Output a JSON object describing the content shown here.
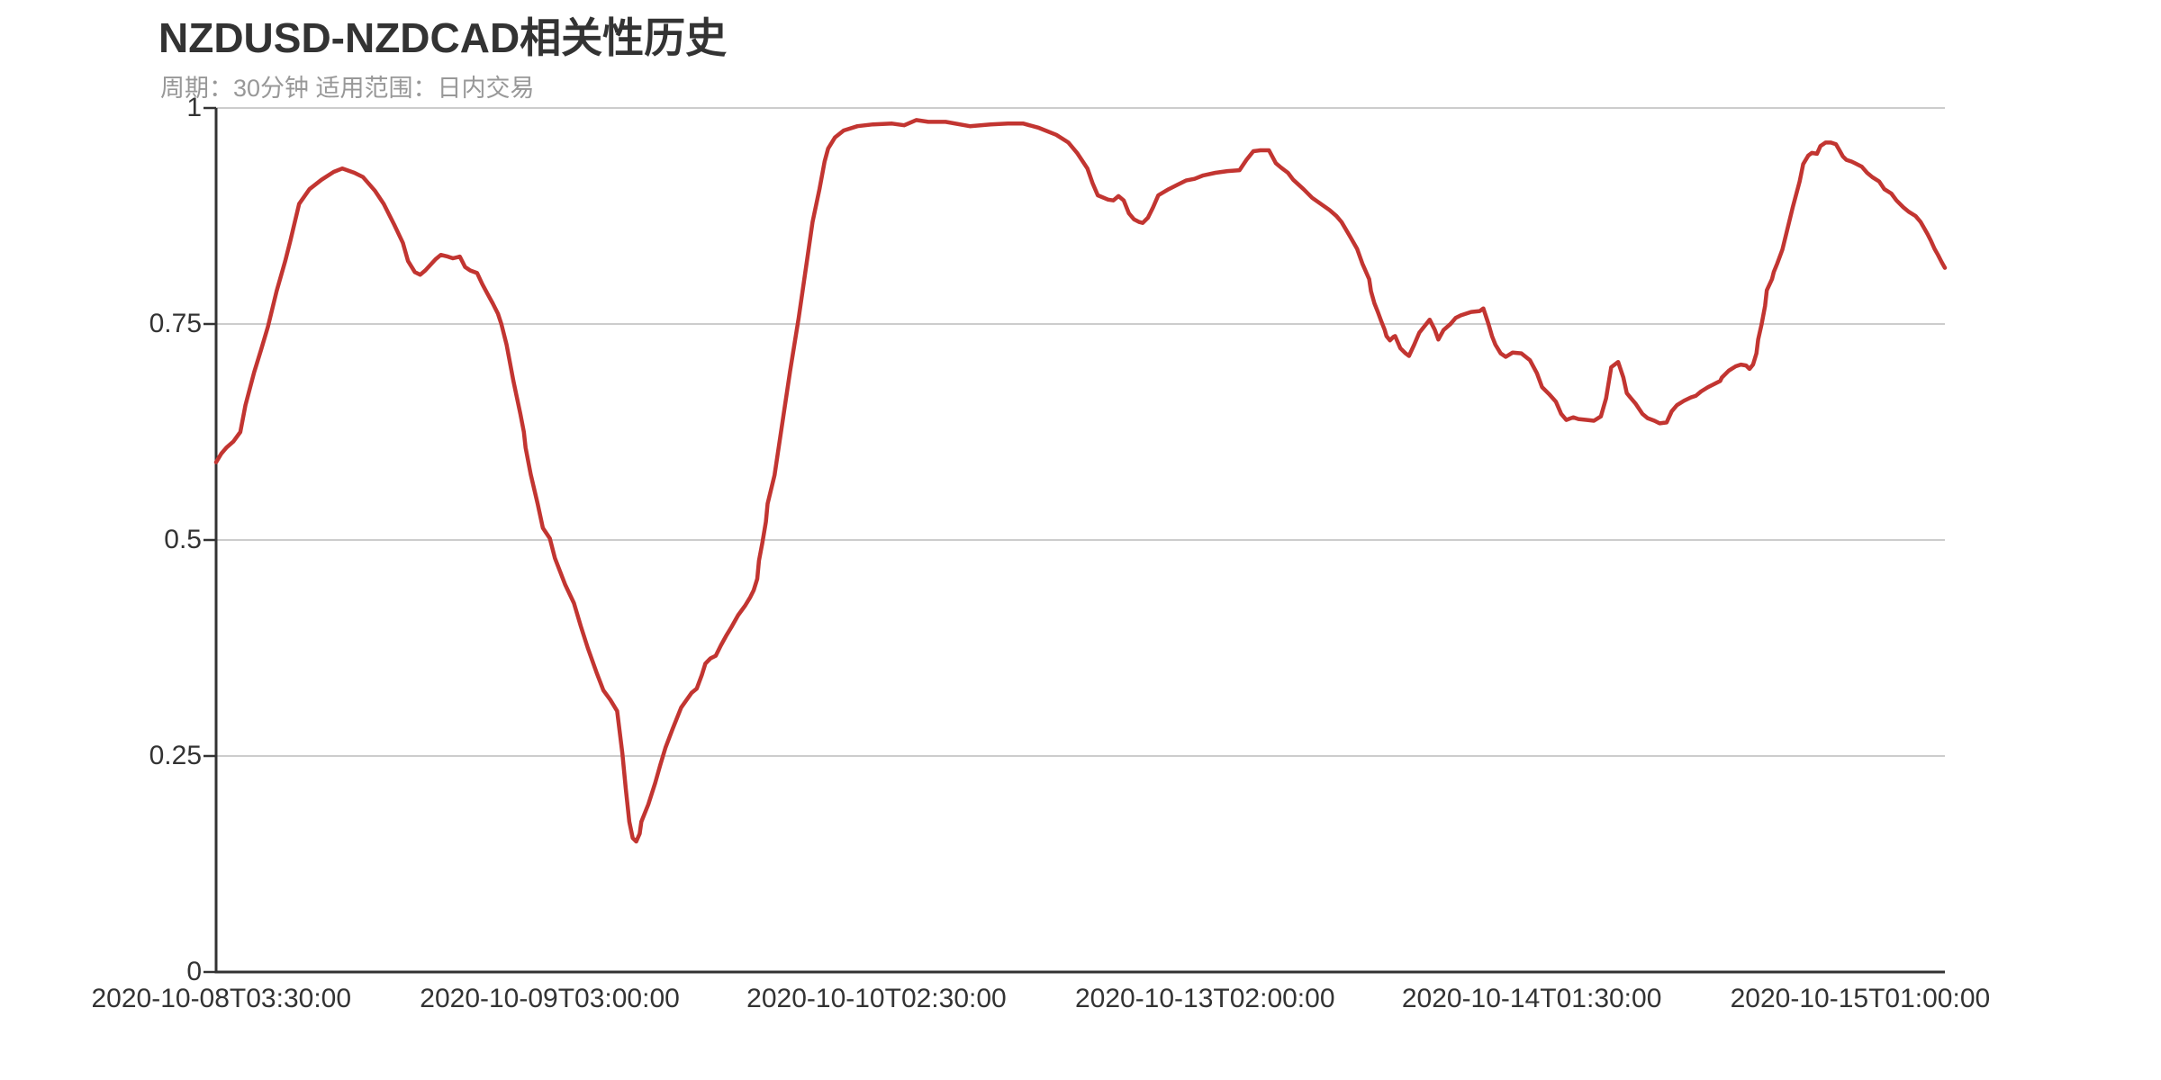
{
  "title": {
    "text": "NZDUSD-NZDCAD相关性历史",
    "subtext": "周期：30分钟 适用范围：日内交易"
  },
  "colors": {
    "series": "#c23531",
    "grid_line": "#cccccc",
    "axis_line": "#333333",
    "axis_label": "#333333",
    "title_text": "#333333",
    "subtitle_text": "#989898",
    "background": "#ffffff"
  },
  "chart_data": {
    "type": "line",
    "title": "NZDUSD-NZDCAD相关性历史",
    "subtitle": "周期：30分钟 适用范围：日内交易",
    "legend": "none",
    "grid": "horizontal-only",
    "x_axis": {
      "type": "category",
      "tick_labels": [
        "2020-10-08T03:30:00",
        "2020-10-09T03:00:00",
        "2020-10-10T02:30:00",
        "2020-10-13T02:00:00",
        "2020-10-14T01:30:00",
        "2020-10-15T01:00:00"
      ],
      "tick_positions": [
        0.003,
        0.193,
        0.382,
        0.572,
        0.761,
        0.951
      ]
    },
    "y_axis": {
      "range": [
        0,
        1
      ],
      "ticks": [
        0,
        0.25,
        0.5,
        0.75,
        1
      ],
      "tick_labels": [
        "0",
        "0.25",
        "0.5",
        "0.75",
        "1"
      ]
    },
    "series": [
      {
        "name": "NZDUSD-NZDCAD相关性",
        "color": "#c23531",
        "line_width": 4.5,
        "points": [
          [
            0,
            0.59
          ],
          [
            0.003,
            0.6
          ],
          [
            0.006,
            0.607
          ],
          [
            0.01,
            0.614
          ],
          [
            0.014,
            0.625
          ],
          [
            0.017,
            0.656
          ],
          [
            0.022,
            0.694
          ],
          [
            0.026,
            0.72
          ],
          [
            0.03,
            0.747
          ],
          [
            0.035,
            0.788
          ],
          [
            0.04,
            0.823
          ],
          [
            0.043,
            0.847
          ],
          [
            0.048,
            0.889
          ],
          [
            0.054,
            0.906
          ],
          [
            0.061,
            0.917
          ],
          [
            0.068,
            0.926
          ],
          [
            0.073,
            0.93
          ],
          [
            0.08,
            0.925
          ],
          [
            0.085,
            0.92
          ],
          [
            0.092,
            0.904
          ],
          [
            0.097,
            0.889
          ],
          [
            0.103,
            0.865
          ],
          [
            0.108,
            0.844
          ],
          [
            0.111,
            0.823
          ],
          [
            0.115,
            0.81
          ],
          [
            0.118,
            0.807
          ],
          [
            0.121,
            0.812
          ],
          [
            0.127,
            0.825
          ],
          [
            0.13,
            0.83
          ],
          [
            0.134,
            0.828
          ],
          [
            0.137,
            0.826
          ],
          [
            0.141,
            0.828
          ],
          [
            0.144,
            0.816
          ],
          [
            0.147,
            0.812
          ],
          [
            0.151,
            0.809
          ],
          [
            0.154,
            0.796
          ],
          [
            0.157,
            0.785
          ],
          [
            0.16,
            0.774
          ],
          [
            0.163,
            0.762
          ],
          [
            0.165,
            0.75
          ],
          [
            0.168,
            0.726
          ],
          [
            0.17,
            0.705
          ],
          [
            0.172,
            0.684
          ],
          [
            0.176,
            0.646
          ],
          [
            0.178,
            0.625
          ],
          [
            0.179,
            0.607
          ],
          [
            0.182,
            0.576
          ],
          [
            0.186,
            0.542
          ],
          [
            0.189,
            0.514
          ],
          [
            0.193,
            0.502
          ],
          [
            0.196,
            0.479
          ],
          [
            0.202,
            0.448
          ],
          [
            0.207,
            0.427
          ],
          [
            0.211,
            0.4
          ],
          [
            0.215,
            0.375
          ],
          [
            0.22,
            0.347
          ],
          [
            0.224,
            0.326
          ],
          [
            0.228,
            0.315
          ],
          [
            0.232,
            0.302
          ],
          [
            0.233,
            0.285
          ],
          [
            0.235,
            0.253
          ],
          [
            0.237,
            0.212
          ],
          [
            0.239,
            0.174
          ],
          [
            0.241,
            0.155
          ],
          [
            0.243,
            0.151
          ],
          [
            0.245,
            0.16
          ],
          [
            0.246,
            0.174
          ],
          [
            0.25,
            0.194
          ],
          [
            0.254,
            0.219
          ],
          [
            0.256,
            0.233
          ],
          [
            0.257,
            0.24
          ],
          [
            0.26,
            0.26
          ],
          [
            0.264,
            0.281
          ],
          [
            0.269,
            0.306
          ],
          [
            0.275,
            0.323
          ],
          [
            0.278,
            0.328
          ],
          [
            0.281,
            0.344
          ],
          [
            0.283,
            0.357
          ],
          [
            0.286,
            0.363
          ],
          [
            0.289,
            0.366
          ],
          [
            0.292,
            0.378
          ],
          [
            0.295,
            0.389
          ],
          [
            0.298,
            0.399
          ],
          [
            0.302,
            0.413
          ],
          [
            0.306,
            0.424
          ],
          [
            0.309,
            0.434
          ],
          [
            0.311,
            0.442
          ],
          [
            0.313,
            0.455
          ],
          [
            0.314,
            0.476
          ],
          [
            0.316,
            0.497
          ],
          [
            0.318,
            0.521
          ],
          [
            0.319,
            0.542
          ],
          [
            0.323,
            0.575
          ],
          [
            0.327,
            0.628
          ],
          [
            0.332,
            0.695
          ],
          [
            0.337,
            0.757
          ],
          [
            0.342,
            0.826
          ],
          [
            0.345,
            0.868
          ],
          [
            0.349,
            0.906
          ],
          [
            0.352,
            0.938
          ],
          [
            0.354,
            0.953
          ],
          [
            0.358,
            0.966
          ],
          [
            0.363,
            0.974
          ],
          [
            0.371,
            0.979
          ],
          [
            0.38,
            0.981
          ],
          [
            0.391,
            0.982
          ],
          [
            0.398,
            0.98
          ],
          [
            0.405,
            0.986
          ],
          [
            0.412,
            0.984
          ],
          [
            0.422,
            0.984
          ],
          [
            0.436,
            0.979
          ],
          [
            0.448,
            0.981
          ],
          [
            0.458,
            0.982
          ],
          [
            0.467,
            0.982
          ],
          [
            0.476,
            0.977
          ],
          [
            0.486,
            0.969
          ],
          [
            0.493,
            0.96
          ],
          [
            0.498,
            0.948
          ],
          [
            0.504,
            0.93
          ],
          [
            0.507,
            0.913
          ],
          [
            0.51,
            0.899
          ],
          [
            0.516,
            0.894
          ],
          [
            0.519,
            0.893
          ],
          [
            0.522,
            0.898
          ],
          [
            0.525,
            0.893
          ],
          [
            0.528,
            0.878
          ],
          [
            0.531,
            0.871
          ],
          [
            0.534,
            0.868
          ],
          [
            0.536,
            0.867
          ],
          [
            0.539,
            0.873
          ],
          [
            0.542,
            0.885
          ],
          [
            0.545,
            0.899
          ],
          [
            0.551,
            0.906
          ],
          [
            0.556,
            0.911
          ],
          [
            0.561,
            0.916
          ],
          [
            0.566,
            0.918
          ],
          [
            0.571,
            0.922
          ],
          [
            0.578,
            0.925
          ],
          [
            0.585,
            0.927
          ],
          [
            0.592,
            0.928
          ],
          [
            0.596,
            0.94
          ],
          [
            0.6,
            0.95
          ],
          [
            0.604,
            0.951
          ],
          [
            0.609,
            0.951
          ],
          [
            0.613,
            0.936
          ],
          [
            0.616,
            0.931
          ],
          [
            0.62,
            0.925
          ],
          [
            0.623,
            0.917
          ],
          [
            0.629,
            0.906
          ],
          [
            0.634,
            0.896
          ],
          [
            0.639,
            0.889
          ],
          [
            0.644,
            0.882
          ],
          [
            0.648,
            0.875
          ],
          [
            0.651,
            0.868
          ],
          [
            0.656,
            0.851
          ],
          [
            0.66,
            0.837
          ],
          [
            0.663,
            0.82
          ],
          [
            0.667,
            0.802
          ],
          [
            0.668,
            0.788
          ],
          [
            0.67,
            0.774
          ],
          [
            0.672,
            0.764
          ],
          [
            0.674,
            0.753
          ],
          [
            0.676,
            0.743
          ],
          [
            0.677,
            0.736
          ],
          [
            0.679,
            0.731
          ],
          [
            0.681,
            0.735
          ],
          [
            0.682,
            0.736
          ],
          [
            0.685,
            0.722
          ],
          [
            0.688,
            0.716
          ],
          [
            0.69,
            0.713
          ],
          [
            0.693,
            0.726
          ],
          [
            0.696,
            0.74
          ],
          [
            0.7,
            0.75
          ],
          [
            0.702,
            0.755
          ],
          [
            0.705,
            0.743
          ],
          [
            0.707,
            0.732
          ],
          [
            0.71,
            0.743
          ],
          [
            0.714,
            0.75
          ],
          [
            0.717,
            0.757
          ],
          [
            0.72,
            0.76
          ],
          [
            0.726,
            0.764
          ],
          [
            0.731,
            0.765
          ],
          [
            0.733,
            0.768
          ],
          [
            0.736,
            0.75
          ],
          [
            0.738,
            0.736
          ],
          [
            0.74,
            0.726
          ],
          [
            0.743,
            0.716
          ],
          [
            0.746,
            0.712
          ],
          [
            0.75,
            0.717
          ],
          [
            0.755,
            0.716
          ],
          [
            0.76,
            0.708
          ],
          [
            0.764,
            0.693
          ],
          [
            0.767,
            0.677
          ],
          [
            0.771,
            0.669
          ],
          [
            0.775,
            0.66
          ],
          [
            0.778,
            0.646
          ],
          [
            0.781,
            0.639
          ],
          [
            0.785,
            0.642
          ],
          [
            0.788,
            0.64
          ],
          [
            0.793,
            0.639
          ],
          [
            0.797,
            0.638
          ],
          [
            0.801,
            0.643
          ],
          [
            0.804,
            0.664
          ],
          [
            0.807,
            0.7
          ],
          [
            0.811,
            0.706
          ],
          [
            0.814,
            0.688
          ],
          [
            0.816,
            0.67
          ],
          [
            0.818,
            0.665
          ],
          [
            0.821,
            0.658
          ],
          [
            0.825,
            0.646
          ],
          [
            0.828,
            0.641
          ],
          [
            0.832,
            0.638
          ],
          [
            0.835,
            0.635
          ],
          [
            0.839,
            0.636
          ],
          [
            0.842,
            0.649
          ],
          [
            0.845,
            0.656
          ],
          [
            0.849,
            0.661
          ],
          [
            0.853,
            0.665
          ],
          [
            0.856,
            0.667
          ],
          [
            0.859,
            0.672
          ],
          [
            0.863,
            0.677
          ],
          [
            0.866,
            0.68
          ],
          [
            0.87,
            0.684
          ],
          [
            0.871,
            0.688
          ],
          [
            0.875,
            0.696
          ],
          [
            0.879,
            0.701
          ],
          [
            0.882,
            0.703
          ],
          [
            0.885,
            0.702
          ],
          [
            0.887,
            0.698
          ],
          [
            0.889,
            0.703
          ],
          [
            0.891,
            0.716
          ],
          [
            0.892,
            0.732
          ],
          [
            0.894,
            0.75
          ],
          [
            0.896,
            0.771
          ],
          [
            0.897,
            0.789
          ],
          [
            0.9,
            0.802
          ],
          [
            0.901,
            0.81
          ],
          [
            0.903,
            0.82
          ],
          [
            0.906,
            0.836
          ],
          [
            0.912,
            0.885
          ],
          [
            0.916,
            0.915
          ],
          [
            0.918,
            0.935
          ],
          [
            0.921,
            0.945
          ],
          [
            0.923,
            0.948
          ],
          [
            0.926,
            0.947
          ],
          [
            0.928,
            0.956
          ],
          [
            0.931,
            0.96
          ],
          [
            0.934,
            0.96
          ],
          [
            0.937,
            0.958
          ],
          [
            0.939,
            0.951
          ],
          [
            0.941,
            0.944
          ],
          [
            0.943,
            0.94
          ],
          [
            0.946,
            0.938
          ],
          [
            0.948,
            0.936
          ],
          [
            0.952,
            0.932
          ],
          [
            0.955,
            0.925
          ],
          [
            0.958,
            0.92
          ],
          [
            0.962,
            0.915
          ],
          [
            0.965,
            0.906
          ],
          [
            0.969,
            0.901
          ],
          [
            0.972,
            0.893
          ],
          [
            0.976,
            0.885
          ],
          [
            0.979,
            0.88
          ],
          [
            0.983,
            0.875
          ],
          [
            0.986,
            0.868
          ],
          [
            0.99,
            0.854
          ],
          [
            0.992,
            0.846
          ],
          [
            0.994,
            0.837
          ],
          [
            0.996,
            0.83
          ],
          [
            0.998,
            0.822
          ],
          [
            1,
            0.815
          ]
        ]
      }
    ]
  }
}
